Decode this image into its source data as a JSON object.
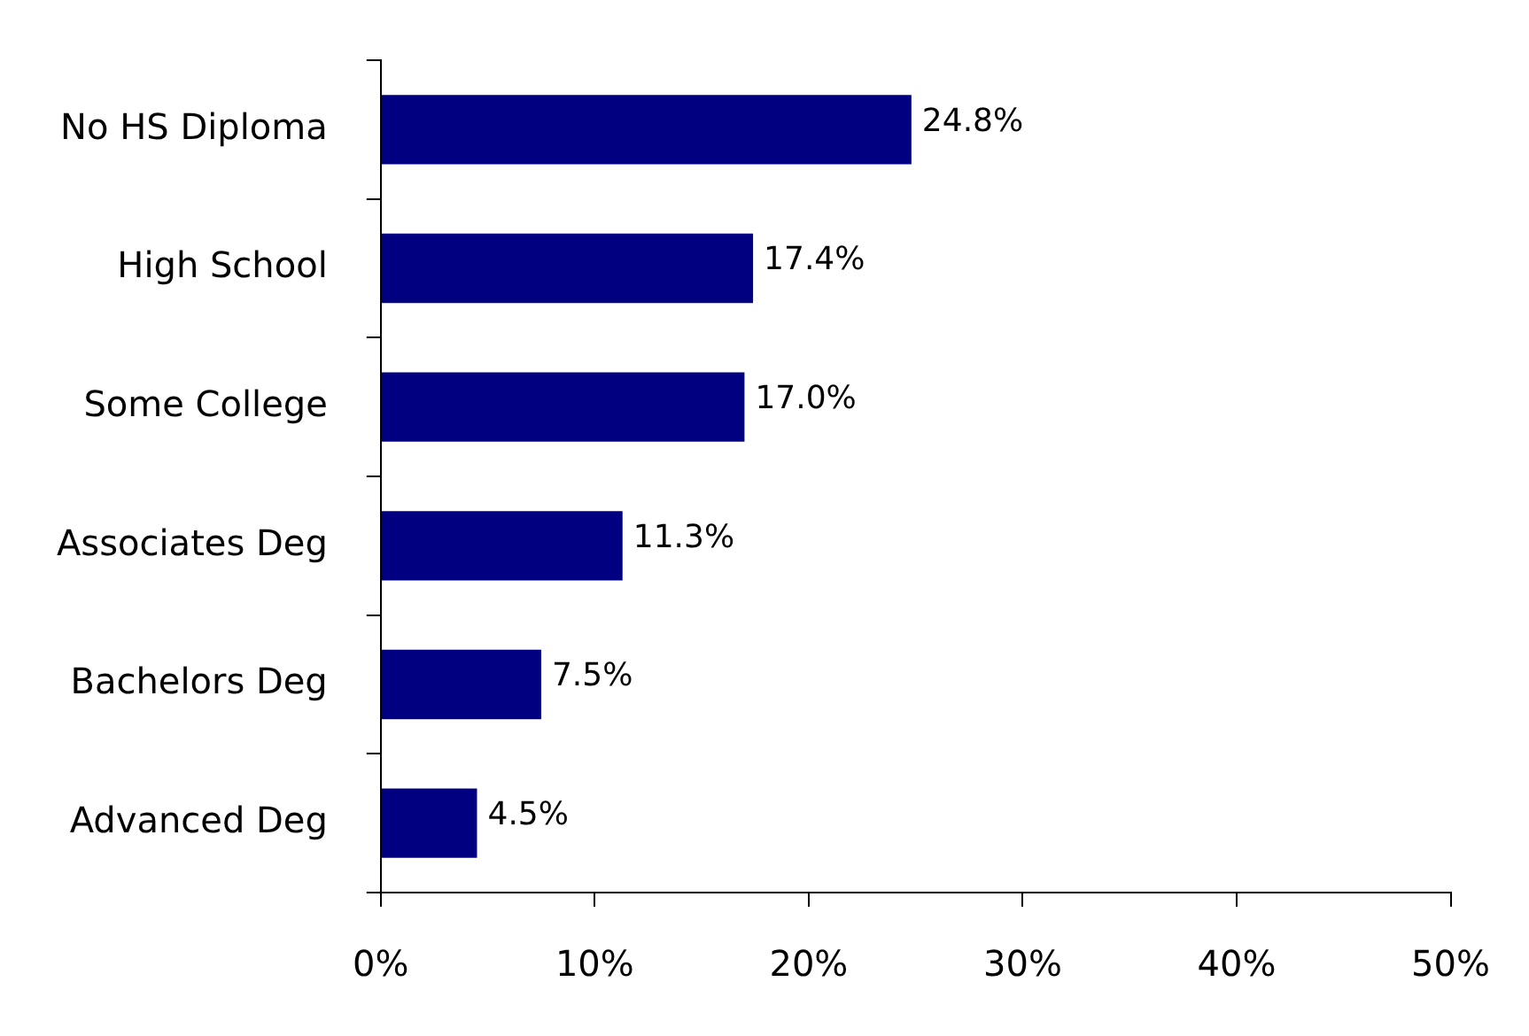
{
  "chart_data": {
    "type": "bar",
    "orientation": "horizontal",
    "categories": [
      "No HS Diploma",
      "High School",
      "Some College",
      "Associates Deg",
      "Bachelors Deg",
      "Advanced Deg"
    ],
    "values": [
      24.8,
      17.4,
      17.0,
      11.3,
      7.5,
      4.5
    ],
    "color": "#000080",
    "value_labels": [
      "24.8%",
      "17.4%",
      "17.0%",
      "11.3%",
      "7.5%",
      "4.5%"
    ],
    "xlim": [
      0,
      50
    ],
    "xticks": [
      {
        "value": 0,
        "label": "0%"
      },
      {
        "value": 10,
        "label": "10%"
      },
      {
        "value": 20,
        "label": "20%"
      },
      {
        "value": 30,
        "label": "30%"
      },
      {
        "value": 40,
        "label": "40%"
      },
      {
        "value": 50,
        "label": "50%"
      }
    ],
    "grid": false,
    "legend": false
  }
}
